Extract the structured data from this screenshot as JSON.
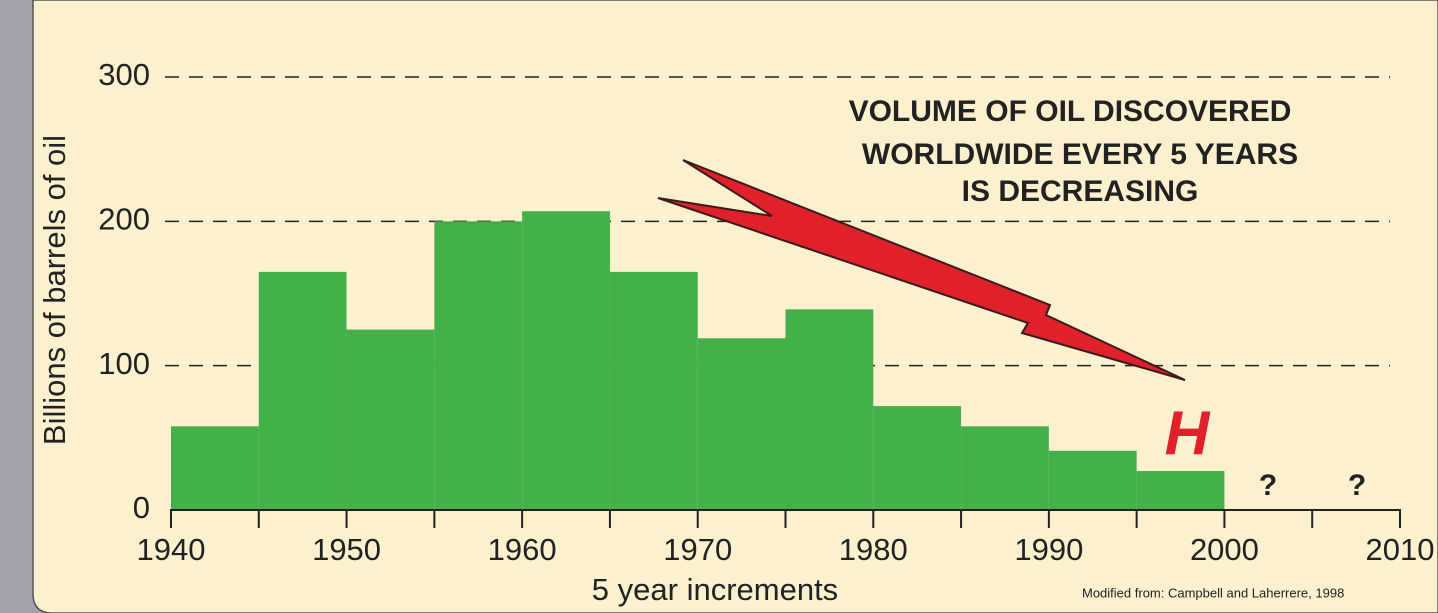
{
  "chart_data": {
    "type": "histogram",
    "ylabel": "Billions of barrels of oil",
    "xlabel": "5 year increments",
    "bins": [
      1940,
      1945,
      1950,
      1955,
      1960,
      1965,
      1970,
      1975,
      1980,
      1985,
      1990,
      1995,
      2000
    ],
    "values": [
      58,
      165,
      125,
      200,
      207,
      165,
      119,
      139,
      72,
      58,
      41,
      27
    ],
    "color": "#43b04a",
    "xlim": [
      1940,
      2010
    ],
    "xticks": [
      1940,
      1950,
      1960,
      1970,
      1980,
      1990,
      2000,
      2010
    ],
    "xminor_ticks": [
      1945,
      1955,
      1965,
      1975,
      1985,
      1995,
      2005
    ],
    "ylim": [
      0,
      300
    ],
    "yticks": [
      0,
      100,
      200,
      300
    ],
    "grid": true,
    "annotations": [
      "VOLUME OF OIL DISCOVERED",
      "WORLDWIDE EVERY 5 YEARS",
      "IS DECREASING",
      "H",
      "?",
      "?"
    ],
    "source": "Modified from: Campbell and Laherrere, 1998"
  }
}
